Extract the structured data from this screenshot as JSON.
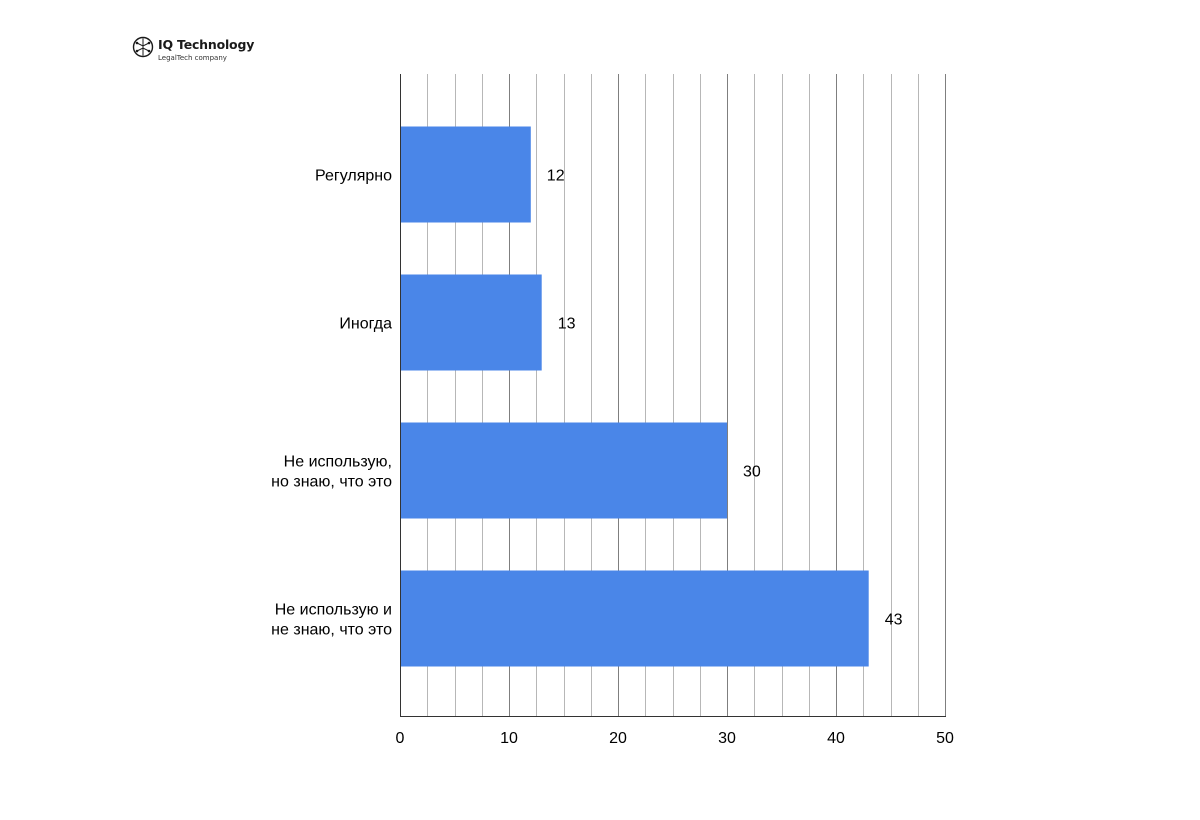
{
  "logo": {
    "icon": "brain-circuit-icon",
    "name": "IQ Technology",
    "subtitle": "LegalTech company"
  },
  "colors": {
    "bar": "#4a86e8",
    "grid_major": "#7f7f7f",
    "grid_minor": "#b7b7b7",
    "axis": "#333333"
  },
  "chart_data": {
    "type": "bar",
    "orientation": "horizontal",
    "categories": [
      [
        "Регулярно"
      ],
      [
        "Иногда"
      ],
      [
        "Не использую,",
        "но знаю, что это"
      ],
      [
        "Не использую и",
        "не знаю, что это"
      ]
    ],
    "values": [
      12,
      13,
      30,
      43
    ],
    "xlim": [
      0,
      50
    ],
    "xticks": [
      0,
      10,
      20,
      30,
      40,
      50
    ],
    "minor_step": 2.5,
    "grid": true,
    "legend": "none",
    "data_labels": true
  }
}
